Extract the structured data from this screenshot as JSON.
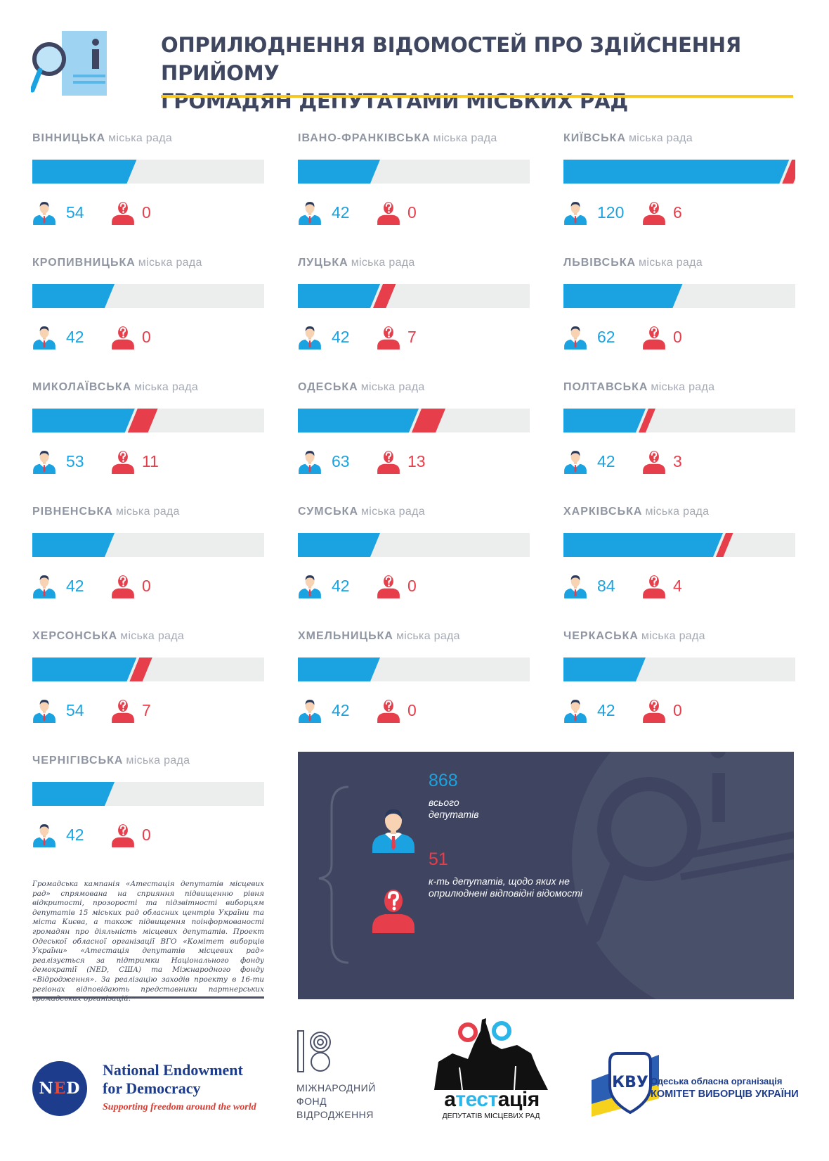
{
  "header": {
    "title_line1": "ОПРИЛЮДНЕННЯ ВІДОМОСТЕЙ ПРО ЗДІЙСНЕННЯ ПРИЙОМУ",
    "title_line2": "ГРОМАДЯН ДЕПУТАТАМИ МІСЬКИХ РАД",
    "icon": "search-info-icon"
  },
  "colors": {
    "published": "#1aa3e0",
    "unpublished": "#e63e4a",
    "bar_background": "#eceded",
    "accent_rule": "#f6c623",
    "panel": "#3f4560"
  },
  "cities": [
    {
      "name": "ВІННИЦЬКА",
      "suffix": "міська рада",
      "published": 54,
      "unpublished": 0
    },
    {
      "name": "ІВАНО-ФРАНКІВСЬКА",
      "suffix": "міська рада",
      "published": 42,
      "unpublished": 0
    },
    {
      "name": "КИЇВСЬКА",
      "suffix": "міська рада",
      "published": 120,
      "unpublished": 6
    },
    {
      "name": "КРОПИВНИЦЬКА",
      "suffix": "міська рада",
      "published": 42,
      "unpublished": 0
    },
    {
      "name": "ЛУЦЬКА",
      "suffix": "міська рада",
      "published": 42,
      "unpublished": 7
    },
    {
      "name": "ЛЬВІВСЬКА",
      "suffix": "міська рада",
      "published": 62,
      "unpublished": 0
    },
    {
      "name": "МИКОЛАЇВСЬКА",
      "suffix": "міська рада",
      "published": 53,
      "unpublished": 11
    },
    {
      "name": "ОДЕСЬКА",
      "suffix": "міська рада",
      "published": 63,
      "unpublished": 13
    },
    {
      "name": "ПОЛТАВСЬКА",
      "suffix": "міська рада",
      "published": 42,
      "unpublished": 3
    },
    {
      "name": "РІВНЕНСЬКА",
      "suffix": "міська рада",
      "published": 42,
      "unpublished": 0
    },
    {
      "name": "СУМСЬКА",
      "suffix": "міська рада",
      "published": 42,
      "unpublished": 0
    },
    {
      "name": "ХАРКІВСЬКА",
      "suffix": "міська рада",
      "published": 84,
      "unpublished": 4
    },
    {
      "name": "ХЕРСОНСЬКА",
      "suffix": "міська рада",
      "published": 54,
      "unpublished": 7
    },
    {
      "name": "ХМЕЛЬНИЦЬКА",
      "suffix": "міська рада",
      "published": 42,
      "unpublished": 0
    },
    {
      "name": "ЧЕРКАСЬКА",
      "suffix": "міська рада",
      "published": 42,
      "unpublished": 0
    },
    {
      "name": "ЧЕРНІГІВСЬКА",
      "suffix": "міська рада",
      "published": 42,
      "unpublished": 0
    }
  ],
  "summary": {
    "total": "868",
    "total_label_line1": "всього",
    "total_label_line2": "депутатів",
    "unpublished": "51",
    "unpublished_label_line1": "к-ть депутатів, щодо яких не",
    "unpublished_label_line2": "оприлюднені відповідні відомості"
  },
  "description": "Громадська кампанія «Атестація депутатів місцевих рад» спрямована на сприяння підвищенню рівня відкритості, прозорості та підзвітності виборцям депутатів 15 міських рад обласних центрів України та міста Києва, а також підвищення поінформованості громадян про діяльність місцевих депутатів. Проект Одеської обласної організації ВГО «Комітет виборців України» «Атестація депутатів місцевих рад» реалізується за підтримки Національного фонду демократії (NED, США) та Міжнародного фонду «Відродження». За реалізацію заходів проекту в 16-ти регіонах відповідають представники партнерських громадських організацій.",
  "logos": {
    "ned": {
      "mark_n": "N",
      "mark_e": "E",
      "mark_d": "D",
      "line1": "National Endowment",
      "line2": "for Democracy",
      "tagline": "Supporting freedom around the world"
    },
    "irf": {
      "line1": "МІЖНАРОДНИЙ",
      "line2": "ФОНД",
      "line3": "ВІДРОДЖЕННЯ"
    },
    "atestatsia": {
      "part1": "а",
      "part2": "тест",
      "part3": "ація",
      "subtitle": "ДЕПУТАТІВ МІСЦЕВИХ РАД"
    },
    "kvu": {
      "mark": "КВУ",
      "line1": "Одеська обласна організація",
      "line2": "КОМІТЕТ ВИБОРЦІВ УКРАЇНИ"
    }
  }
}
